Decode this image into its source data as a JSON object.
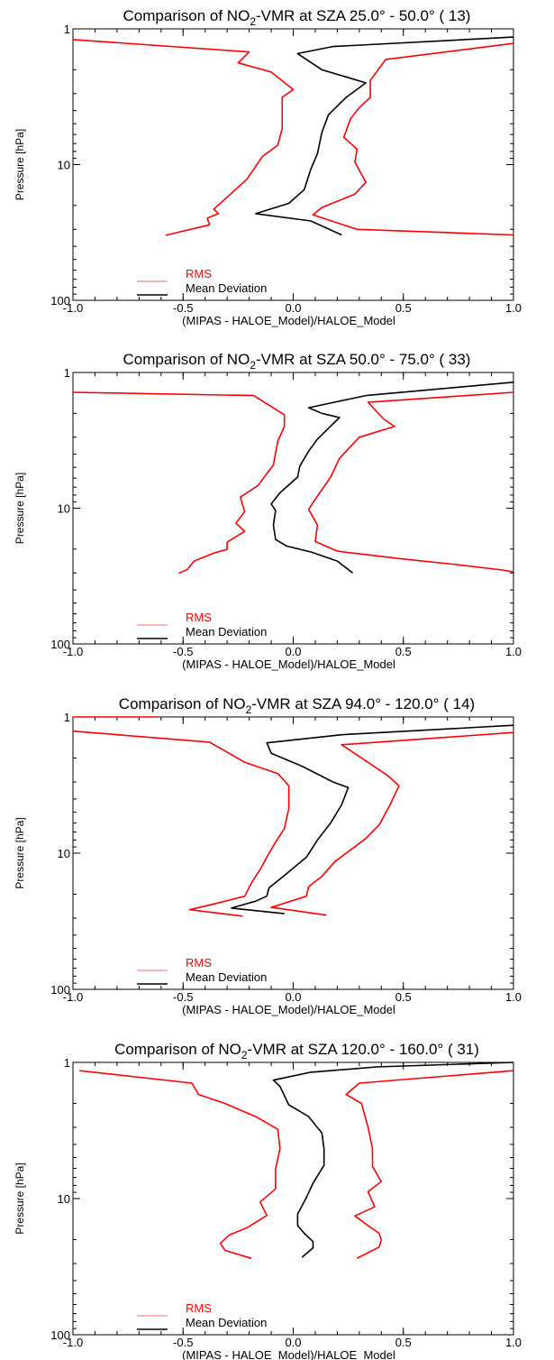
{
  "chart_data": [
    {
      "type": "line",
      "title": {
        "prefix": "Comparison of NO",
        "sub": "2",
        "suffix": "-VMR at SZA  25.0° -  50.0° (  13)"
      },
      "xlabel": "(MIPAS - HALOE_Model)/HALOE_Model",
      "ylabel": "Pressure [hPa]",
      "xlim": [
        -1.0,
        1.0
      ],
      "ylim": [
        100,
        1
      ],
      "yscale": "log",
      "xticks": [
        "-1.0",
        "-0.5",
        "0.0",
        "0.5",
        "1.0"
      ],
      "yticks": [
        "1",
        "10",
        "100"
      ],
      "legend_position": "bottom-left",
      "series": [
        {
          "name": "RMS",
          "color": "#ff0000",
          "points": [
            [
              -1.0,
              1.2
            ],
            [
              -0.2,
              1.48
            ],
            [
              -0.25,
              1.78
            ],
            [
              -0.1,
              2.08
            ],
            [
              0.0,
              2.8
            ],
            [
              -0.05,
              3.2
            ],
            [
              -0.05,
              5.4
            ],
            [
              -0.07,
              7.2
            ],
            [
              -0.14,
              8.7
            ],
            [
              -0.21,
              12.8
            ],
            [
              -0.3,
              17.4
            ],
            [
              -0.36,
              21.3
            ],
            [
              -0.34,
              23.0
            ],
            [
              -0.39,
              24.8
            ],
            [
              -0.38,
              27.8
            ],
            [
              -0.58,
              33.2
            ]
          ]
        },
        {
          "name": "RMS",
          "color": "#ff0000",
          "points": [
            [
              1.0,
              1.28
            ],
            [
              0.42,
              1.68
            ],
            [
              0.35,
              2.4
            ],
            [
              0.35,
              3.2
            ],
            [
              0.3,
              3.8
            ],
            [
              0.26,
              4.6
            ],
            [
              0.23,
              6.3
            ],
            [
              0.29,
              7.7
            ],
            [
              0.28,
              9.6
            ],
            [
              0.33,
              13.5
            ],
            [
              0.28,
              16.5
            ],
            [
              0.13,
              20.7
            ],
            [
              0.09,
              23.5
            ],
            [
              0.29,
              30
            ],
            [
              1.0,
              33
            ]
          ]
        },
        {
          "name": "Mean Deviation",
          "color": "#000000",
          "points": [
            [
              1.0,
              1.15
            ],
            [
              0.18,
              1.35
            ],
            [
              0.02,
              1.52
            ],
            [
              0.13,
              2.0
            ],
            [
              0.33,
              2.5
            ],
            [
              0.24,
              3.2
            ],
            [
              0.16,
              4.3
            ],
            [
              0.13,
              5.8
            ],
            [
              0.11,
              8.3
            ],
            [
              0.08,
              10.8
            ],
            [
              0.05,
              15.3
            ],
            [
              -0.02,
              19.3
            ],
            [
              -0.17,
              23
            ],
            [
              0.08,
              26
            ],
            [
              0.22,
              33
            ]
          ]
        }
      ],
      "legend": [
        "RMS",
        "Mean Deviation"
      ]
    },
    {
      "type": "line",
      "title": {
        "prefix": "Comparison of NO",
        "sub": "2",
        "suffix": "-VMR at SZA  50.0° -  75.0° (  33)"
      },
      "xlabel": "(MIPAS - HALOE_Model)/HALOE_Model",
      "ylabel": "Pressure [hPa]",
      "xlim": [
        -1.0,
        1.0
      ],
      "ylim": [
        100,
        1
      ],
      "yscale": "log",
      "xticks": [
        "-1.0",
        "-0.5",
        "0.0",
        "0.5",
        "1.0"
      ],
      "yticks": [
        "1",
        "10",
        "100"
      ],
      "legend_position": "bottom-left",
      "series": [
        {
          "name": "RMS",
          "color": "#ff0000",
          "points": [
            [
              -1.0,
              1.4
            ],
            [
              -0.18,
              1.48
            ],
            [
              -0.04,
              2.05
            ],
            [
              -0.04,
              2.5
            ],
            [
              -0.07,
              3.2
            ],
            [
              -0.09,
              4.8
            ],
            [
              -0.16,
              6.8
            ],
            [
              -0.24,
              8.3
            ],
            [
              -0.22,
              10.6
            ],
            [
              -0.26,
              12.9
            ],
            [
              -0.22,
              14.8
            ],
            [
              -0.3,
              17.8
            ],
            [
              -0.3,
              20.1
            ],
            [
              -0.36,
              21.4
            ],
            [
              -0.45,
              24.5
            ],
            [
              -0.48,
              28.2
            ],
            [
              -0.52,
              30.2
            ]
          ]
        },
        {
          "name": "RMS",
          "color": "#ff0000",
          "points": [
            [
              1.0,
              1.4
            ],
            [
              0.34,
              1.66
            ],
            [
              0.41,
              2.2
            ],
            [
              0.46,
              2.5
            ],
            [
              0.3,
              3.0
            ],
            [
              0.21,
              4.3
            ],
            [
              0.17,
              5.9
            ],
            [
              0.1,
              8.6
            ],
            [
              0.07,
              10.2
            ],
            [
              0.11,
              13.3
            ],
            [
              0.1,
              17.6
            ],
            [
              0.2,
              20.7
            ],
            [
              0.48,
              23.5
            ],
            [
              0.74,
              26.0
            ],
            [
              0.95,
              28.5
            ],
            [
              1.0,
              29.5
            ]
          ]
        },
        {
          "name": "Mean Deviation",
          "color": "#000000",
          "points": [
            [
              1.0,
              1.18
            ],
            [
              0.33,
              1.48
            ],
            [
              0.07,
              1.82
            ],
            [
              0.13,
              2.0
            ],
            [
              0.21,
              2.15
            ],
            [
              0.11,
              3.1
            ],
            [
              0.07,
              3.8
            ],
            [
              0.03,
              4.9
            ],
            [
              0.02,
              5.9
            ],
            [
              -0.06,
              7.7
            ],
            [
              -0.1,
              9.3
            ],
            [
              -0.08,
              10.4
            ],
            [
              -0.09,
              13.3
            ],
            [
              -0.08,
              17.0
            ],
            [
              -0.03,
              19.0
            ],
            [
              0.08,
              21.0
            ],
            [
              0.2,
              24.5
            ],
            [
              0.27,
              30.0
            ]
          ]
        }
      ],
      "legend": [
        "RMS",
        "Mean Deviation"
      ]
    },
    {
      "type": "line",
      "title": {
        "prefix": "Comparison of NO",
        "sub": "2",
        "suffix": "-VMR at SZA  94.0° - 120.0° (  14)"
      },
      "xlabel": "(MIPAS - HALOE_Model)/HALOE_Model",
      "ylabel": "Pressure [hPa]",
      "xlim": [
        -1.0,
        1.0
      ],
      "ylim": [
        100,
        1
      ],
      "yscale": "log",
      "xticks": [
        "-1.0",
        "-0.5",
        "0.0",
        "0.5",
        "1.0"
      ],
      "yticks": [
        "1",
        "10",
        "100"
      ],
      "legend_position": "bottom-left",
      "series": [
        {
          "name": "RMS",
          "color": "#ff0000",
          "points": [
            [
              -1.0,
              1.0
            ],
            [
              -0.62,
              1.0
            ]
          ]
        },
        {
          "name": "RMS",
          "color": "#ff0000",
          "points": [
            [
              -1.0,
              1.27
            ],
            [
              -0.38,
              1.53
            ],
            [
              -0.22,
              2.15
            ],
            [
              -0.07,
              2.6
            ],
            [
              -0.02,
              3.2
            ],
            [
              -0.02,
              4.7
            ],
            [
              -0.04,
              6.6
            ],
            [
              -0.08,
              8.3
            ],
            [
              -0.12,
              10.7
            ],
            [
              -0.15,
              13.2
            ],
            [
              -0.19,
              16.6
            ],
            [
              -0.22,
              20.7
            ],
            [
              -0.34,
              23.2
            ],
            [
              -0.47,
              26.0
            ],
            [
              -0.23,
              29.0
            ]
          ]
        },
        {
          "name": "RMS",
          "color": "#ff0000",
          "points": [
            [
              1.0,
              1.3
            ],
            [
              0.22,
              1.6
            ],
            [
              0.43,
              2.7
            ],
            [
              0.48,
              3.2
            ],
            [
              0.44,
              4.4
            ],
            [
              0.39,
              6.2
            ],
            [
              0.33,
              7.8
            ],
            [
              0.19,
              11.5
            ],
            [
              0.13,
              14.8
            ],
            [
              0.07,
              17.6
            ],
            [
              0.06,
              20.7
            ],
            [
              -0.1,
              25.0
            ],
            [
              0.15,
              28.5
            ]
          ]
        },
        {
          "name": "Mean Deviation",
          "color": "#000000",
          "points": [
            [
              1.0,
              1.15
            ],
            [
              0.22,
              1.35
            ],
            [
              -0.12,
              1.55
            ],
            [
              -0.1,
              1.85
            ],
            [
              0.04,
              2.3
            ],
            [
              0.18,
              3.0
            ],
            [
              0.25,
              3.3
            ],
            [
              0.22,
              4.4
            ],
            [
              0.17,
              6.0
            ],
            [
              0.11,
              8.0
            ],
            [
              0.06,
              10.7
            ],
            [
              -0.04,
              14.6
            ],
            [
              -0.11,
              18.0
            ],
            [
              -0.12,
              20.7
            ],
            [
              -0.17,
              22.5
            ],
            [
              -0.28,
              25.3
            ],
            [
              -0.04,
              27.8
            ]
          ]
        }
      ],
      "legend": [
        "RMS",
        "Mean Deviation"
      ]
    },
    {
      "type": "line",
      "title": {
        "prefix": "Comparison of NO",
        "sub": "2",
        "suffix": "-VMR at SZA 120.0° - 160.0° (  31)"
      },
      "xlabel": "(MIPAS - HALOE_Model)/HALOE_Model",
      "ylabel": "Pressure [hPa]",
      "xlim": [
        -1.0,
        1.0
      ],
      "ylim": [
        100,
        1
      ],
      "yscale": "log",
      "xticks": [
        "-1.0",
        "-0.5",
        "0.0",
        "0.5",
        "1.0"
      ],
      "yticks": [
        "1",
        "10",
        "100"
      ],
      "legend_position": "bottom-left",
      "series": [
        {
          "name": "RMS",
          "color": "#ff0000",
          "points": [
            [
              -0.97,
              1.15
            ],
            [
              -0.46,
              1.42
            ],
            [
              -0.43,
              1.72
            ],
            [
              -0.31,
              2.0
            ],
            [
              -0.17,
              2.5
            ],
            [
              -0.07,
              3.1
            ],
            [
              -0.06,
              4.3
            ],
            [
              -0.08,
              6.1
            ],
            [
              -0.08,
              8.5
            ],
            [
              -0.15,
              10.6
            ],
            [
              -0.12,
              13.3
            ],
            [
              -0.21,
              16.4
            ],
            [
              -0.29,
              18.5
            ],
            [
              -0.33,
              21.3
            ],
            [
              -0.31,
              24.0
            ],
            [
              -0.19,
              27.5
            ]
          ]
        },
        {
          "name": "RMS",
          "color": "#ff0000",
          "points": [
            [
              1.0,
              1.15
            ],
            [
              0.3,
              1.42
            ],
            [
              0.24,
              1.72
            ],
            [
              0.31,
              2.0
            ],
            [
              0.34,
              3.0
            ],
            [
              0.36,
              4.3
            ],
            [
              0.36,
              5.8
            ],
            [
              0.4,
              7.5
            ],
            [
              0.34,
              8.9
            ],
            [
              0.37,
              11.5
            ],
            [
              0.28,
              13.4
            ],
            [
              0.34,
              15.8
            ],
            [
              0.39,
              18.0
            ],
            [
              0.4,
              20.1
            ],
            [
              0.39,
              22.7
            ],
            [
              0.29,
              27.4
            ]
          ]
        },
        {
          "name": "Mean Deviation",
          "color": "#000000",
          "points": [
            [
              1.0,
              1.0
            ],
            [
              0.38,
              1.08
            ],
            [
              0.08,
              1.18
            ],
            [
              -0.09,
              1.35
            ],
            [
              -0.06,
              1.5
            ],
            [
              -0.02,
              2.05
            ],
            [
              0.07,
              2.5
            ],
            [
              0.13,
              3.3
            ],
            [
              0.14,
              4.3
            ],
            [
              0.14,
              5.7
            ],
            [
              0.09,
              7.7
            ],
            [
              0.06,
              9.8
            ],
            [
              0.02,
              13.0
            ],
            [
              0.02,
              15.8
            ],
            [
              0.05,
              18.0
            ],
            [
              0.09,
              20.7
            ],
            [
              0.09,
              23.0
            ],
            [
              0.04,
              27.0
            ]
          ]
        }
      ],
      "legend": [
        "RMS",
        "Mean Deviation"
      ]
    }
  ]
}
